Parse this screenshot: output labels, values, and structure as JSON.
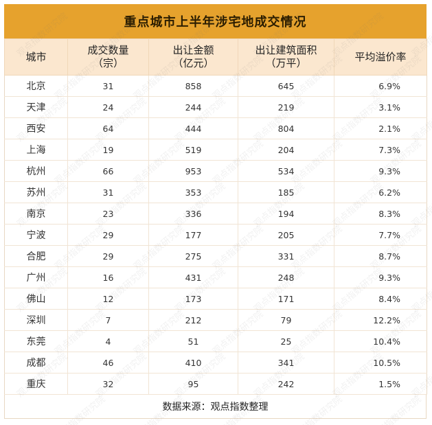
{
  "title": "重点城市上半年涉宅地成交情况",
  "headers": [
    {
      "line1": "城市",
      "line2": ""
    },
    {
      "line1": "成交数量",
      "line2": "（宗）"
    },
    {
      "line1": "出让金额",
      "line2": "（亿元）"
    },
    {
      "line1": "出让建筑面积",
      "line2": "（万平）"
    },
    {
      "line1": "平均溢价率",
      "line2": ""
    }
  ],
  "rows": [
    {
      "city": "北京",
      "count": "31",
      "amount": "858",
      "area": "645",
      "premium": "6.9%"
    },
    {
      "city": "天津",
      "count": "24",
      "amount": "244",
      "area": "219",
      "premium": "3.1%"
    },
    {
      "city": "西安",
      "count": "64",
      "amount": "444",
      "area": "804",
      "premium": "2.1%"
    },
    {
      "city": "上海",
      "count": "19",
      "amount": "519",
      "area": "204",
      "premium": "7.3%"
    },
    {
      "city": "杭州",
      "count": "66",
      "amount": "953",
      "area": "534",
      "premium": "9.3%"
    },
    {
      "city": "苏州",
      "count": "31",
      "amount": "353",
      "area": "185",
      "premium": "6.2%"
    },
    {
      "city": "南京",
      "count": "23",
      "amount": "336",
      "area": "194",
      "premium": "8.3%"
    },
    {
      "city": "宁波",
      "count": "29",
      "amount": "177",
      "area": "205",
      "premium": "7.7%"
    },
    {
      "city": "合肥",
      "count": "29",
      "amount": "275",
      "area": "331",
      "premium": "8.7%"
    },
    {
      "city": "广州",
      "count": "16",
      "amount": "431",
      "area": "248",
      "premium": "9.3%"
    },
    {
      "city": "佛山",
      "count": "12",
      "amount": "173",
      "area": "171",
      "premium": "8.4%"
    },
    {
      "city": "深圳",
      "count": "7",
      "amount": "212",
      "area": "79",
      "premium": "12.2%"
    },
    {
      "city": "东莞",
      "count": "4",
      "amount": "51",
      "area": "25",
      "premium": "10.4%"
    },
    {
      "city": "成都",
      "count": "46",
      "amount": "410",
      "area": "341",
      "premium": "10.5%"
    },
    {
      "city": "重庆",
      "count": "32",
      "amount": "95",
      "area": "242",
      "premium": "1.5%"
    }
  ],
  "footer": "数据来源：观点指数整理",
  "watermark_text": "观点指数研究院",
  "colors": {
    "title_bg": "#e6a22d",
    "header_bg": "#fbe7cf",
    "grid": "#f1e4d4"
  }
}
